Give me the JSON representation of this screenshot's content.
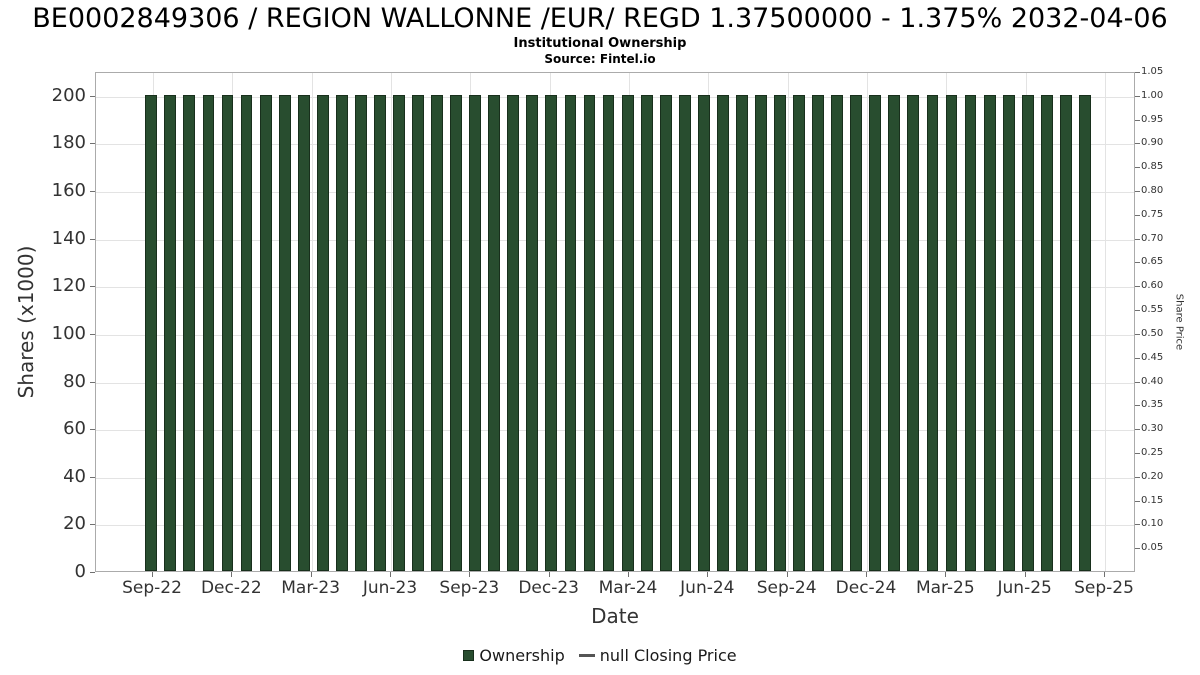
{
  "chart_data": {
    "type": "bar",
    "title": "BE0002849306 / REGION WALLONNE /EUR/ REGD 1.37500000 - 1.375% 2032-04-06",
    "subtitle": "Institutional Ownership",
    "source": "Source: Fintel.io",
    "xlabel": "Date",
    "ylabel_left": "Shares (x1000)",
    "ylabel_right": "Share Price",
    "x_tick_labels": [
      "Sep-22",
      "Dec-22",
      "Mar-23",
      "Jun-23",
      "Sep-23",
      "Dec-23",
      "Mar-24",
      "Jun-24",
      "Sep-24",
      "Dec-24",
      "Mar-25",
      "Jun-25",
      "Sep-25"
    ],
    "y_left_ticks": [
      "0",
      "20",
      "40",
      "60",
      "80",
      "100",
      "120",
      "140",
      "160",
      "180",
      "200"
    ],
    "y_right_ticks": [
      "0.05",
      "0.10",
      "0.15",
      "0.20",
      "0.25",
      "0.30",
      "0.35",
      "0.40",
      "0.45",
      "0.50",
      "0.55",
      "0.60",
      "0.65",
      "0.70",
      "0.75",
      "0.80",
      "0.85",
      "0.90",
      "0.95",
      "1.00",
      "1.05"
    ],
    "ylim_left": [
      0,
      210
    ],
    "ylim_right": [
      0,
      1.05
    ],
    "grid": true,
    "legend_position": "bottom",
    "bar_color": "#284d2f",
    "bar_border_color": "#182f1c",
    "series": [
      {
        "name": "Ownership",
        "type": "bar",
        "values": [
          200,
          200,
          200,
          200,
          200,
          200,
          200,
          200,
          200,
          200,
          200,
          200,
          200,
          200,
          200,
          200,
          200,
          200,
          200,
          200,
          200,
          200,
          200,
          200,
          200,
          200,
          200,
          200,
          200,
          200,
          200,
          200,
          200,
          200,
          200,
          200,
          200,
          200,
          200,
          200,
          200,
          200,
          200,
          200,
          200,
          200,
          200,
          200,
          200,
          200
        ]
      },
      {
        "name": "null Closing Price",
        "type": "line",
        "line_color": "#555555",
        "values": []
      }
    ]
  }
}
